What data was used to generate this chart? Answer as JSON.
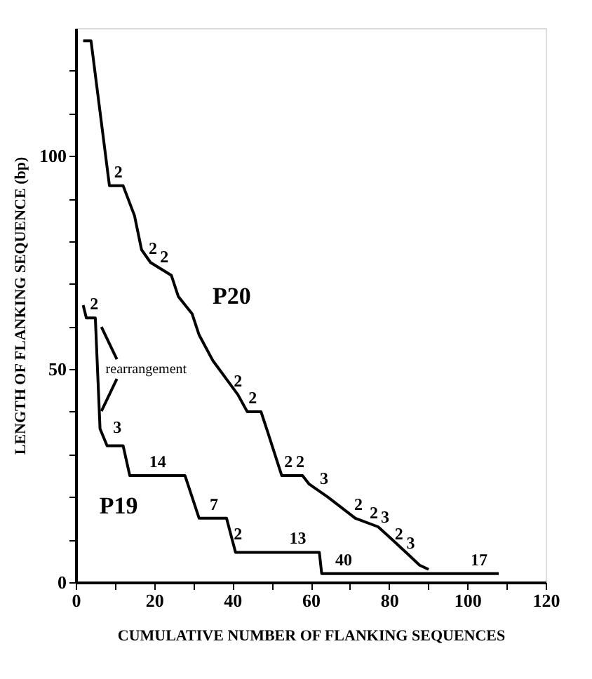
{
  "chart_data": {
    "type": "line",
    "xlabel": "CUMULATIVE NUMBER OF FLANKING SEQUENCES",
    "ylabel": "LENGTH OF FLANKING SEQUENCE (bp)",
    "xlim": [
      0,
      120
    ],
    "ylim": [
      0,
      130
    ],
    "xticks": [
      0,
      {
        "value": 10,
        "label": null
      },
      20,
      {
        "value": 30,
        "label": null
      },
      40,
      {
        "value": 50,
        "label": null
      },
      60,
      {
        "value": 70,
        "label": null
      },
      80,
      {
        "value": 90,
        "label": null
      },
      100,
      {
        "value": 110,
        "label": null
      },
      120
    ],
    "yticks": [
      0,
      {
        "value": 10,
        "label": null
      },
      {
        "value": 20,
        "label": null
      },
      {
        "value": 30,
        "label": null
      },
      {
        "value": 40,
        "label": null
      },
      50,
      {
        "value": 60,
        "label": null
      },
      {
        "value": 70,
        "label": null
      },
      {
        "value": 80,
        "label": null
      },
      {
        "value": 90,
        "label": null
      },
      100,
      {
        "value": 110,
        "label": null
      },
      {
        "value": 120,
        "label": null
      }
    ],
    "grid": false,
    "legend": false,
    "marker": "none",
    "line_style": "solid",
    "series": [
      {
        "name": "P20",
        "color": "#000000",
        "x": [
          1.9,
          3.9,
          8.6,
          12.1,
          15,
          16.8,
          19.1,
          24.4,
          26.2,
          29.7,
          31.5,
          35,
          41.4,
          43.8,
          47.3,
          49.1,
          52.6,
          57.9,
          59.6,
          64.3,
          71.4,
          77.2,
          80.8,
          84.9,
          87.8,
          90.1
        ],
        "values": [
          127,
          127,
          93,
          93,
          86,
          78,
          75,
          72,
          67,
          63,
          58,
          52,
          44,
          40,
          40,
          35,
          25,
          25,
          23,
          20,
          15,
          13,
          10,
          6.5,
          4,
          3
        ]
      },
      {
        "name": "P19",
        "color": "#000000",
        "x": [
          1.9,
          2.7,
          5,
          6.2,
          8,
          12.1,
          13.8,
          27.9,
          31.5,
          38.5,
          40.8,
          62.2,
          62.8,
          108
        ],
        "values": [
          65,
          62,
          62,
          36,
          32,
          32,
          25,
          25,
          15,
          15,
          7,
          7,
          2,
          2
        ]
      }
    ],
    "annotations": [
      {
        "text": "2",
        "x": 10.9,
        "y": 93
      },
      {
        "text": "2",
        "x": 19.7,
        "y": 75
      },
      {
        "text": "2",
        "x": 22.6,
        "y": 73
      },
      {
        "text": "2",
        "x": 41.4,
        "y": 44
      },
      {
        "text": "2",
        "x": 45.2,
        "y": 40
      },
      {
        "text": "2",
        "x": 54.3,
        "y": 25
      },
      {
        "text": "2",
        "x": 57.3,
        "y": 25
      },
      {
        "text": "3",
        "x": 63.4,
        "y": 21
      },
      {
        "text": "2",
        "x": 72.2,
        "y": 15
      },
      {
        "text": "2",
        "x": 76.1,
        "y": 13
      },
      {
        "text": "3",
        "x": 79,
        "y": 12
      },
      {
        "text": "2",
        "x": 82.5,
        "y": 8
      },
      {
        "text": "3",
        "x": 85.5,
        "y": 6
      },
      {
        "text": "17",
        "x": 103,
        "y": 2
      },
      {
        "text": "2",
        "x": 4.7,
        "y": 62
      },
      {
        "text": "3",
        "x": 10.6,
        "y": 33
      },
      {
        "text": "14",
        "x": 20.9,
        "y": 25
      },
      {
        "text": "7",
        "x": 35.3,
        "y": 15
      },
      {
        "text": "2",
        "x": 41.4,
        "y": 8
      },
      {
        "text": "13",
        "x": 56.7,
        "y": 7
      },
      {
        "text": "40",
        "x": 68.4,
        "y": 2
      },
      {
        "text": "rearrangement",
        "x": 6.2,
        "y": 50
      }
    ]
  }
}
